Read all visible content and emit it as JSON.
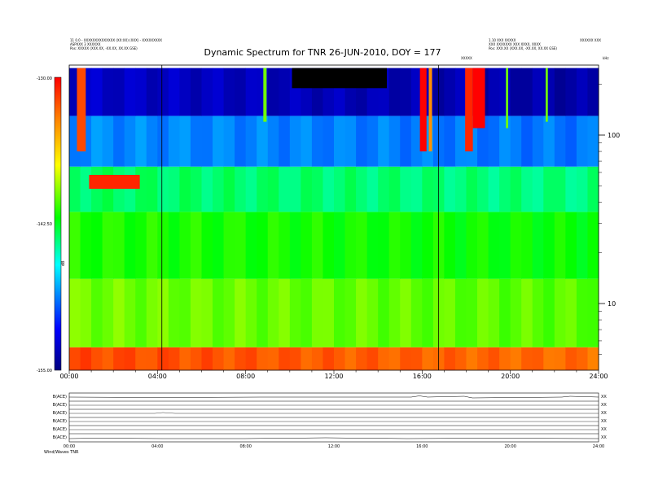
{
  "chart_data": {
    "type": "heatmap",
    "title": "Dynamic Spectrum for TNR 26-JUN-2010, DOY = 177",
    "x_tick_labels": [
      "00:00",
      "04:00",
      "08:00",
      "12:00",
      "16:00",
      "20:00",
      "24:00"
    ],
    "xlim_hours": [
      0,
      24
    ],
    "y_tick_labels": [
      "100",
      "10"
    ],
    "y_scale": "log",
    "y_unit": "kHz",
    "ylim_khz": [
      4,
      250
    ],
    "colorbar": {
      "min": -155.0,
      "mid": -142.5,
      "max": -130.0,
      "min_label": "-155.00",
      "mid_label": "-142.50",
      "max_label": "-130.00",
      "unit_label": "dB",
      "colors": [
        "#000080",
        "#0000ff",
        "#00ffff",
        "#00ff00",
        "#ffff00",
        "#ff8000",
        "#ff0000"
      ]
    },
    "vertical_marker_lines_hours": [
      4.2,
      16.75
    ],
    "panel_bands": [
      {
        "fmin": 4.0,
        "fmax": 5.5,
        "v0": -132,
        "v1": -133
      },
      {
        "fmin": 5.5,
        "fmax": 14,
        "v0": -140,
        "v1": -140.5
      },
      {
        "fmin": 14,
        "fmax": 35,
        "v0": -141.5,
        "v1": -142
      },
      {
        "fmin": 35,
        "fmax": 65,
        "v0": -143.5,
        "v1": -144
      },
      {
        "fmin": 65,
        "fmax": 130,
        "v0": -148.5,
        "v1": -149
      },
      {
        "fmin": 130,
        "fmax": 250,
        "v0": -153,
        "v1": -154
      }
    ],
    "bursts": [
      {
        "t0": 0.35,
        "t1": 0.75,
        "fmin": 80,
        "fmax": 250,
        "value": -132
      },
      {
        "t0": 0.9,
        "t1": 3.2,
        "fmin": 48,
        "fmax": 58,
        "value": -131
      },
      {
        "t0": 15.9,
        "t1": 16.2,
        "fmin": 80,
        "fmax": 250,
        "value": -130
      },
      {
        "t0": 16.3,
        "t1": 16.45,
        "fmin": 80,
        "fmax": 250,
        "value": -134
      },
      {
        "t0": 17.95,
        "t1": 18.3,
        "fmin": 80,
        "fmax": 250,
        "value": -131
      },
      {
        "t0": 18.3,
        "t1": 18.85,
        "fmin": 110,
        "fmax": 250,
        "value": -130
      },
      {
        "t0": 8.8,
        "t1": 8.95,
        "fmin": 120,
        "fmax": 250,
        "value": -140
      },
      {
        "t0": 19.8,
        "t1": 19.9,
        "fmin": 110,
        "fmax": 250,
        "value": -140
      },
      {
        "t0": 21.6,
        "t1": 21.7,
        "fmin": 120,
        "fmax": 250,
        "value": -140
      }
    ],
    "dark_region": {
      "t0": 10.1,
      "t1": 14.4,
      "fmin": 190,
      "fmax": 250,
      "value": -158
    }
  },
  "header": {
    "left_lines": [
      "11 0.0 - XXXXXXXXXXXXXX (XX:XX) (XXX) - XXXXXXXXX",
      "ASPXXX 3 XXXXXX",
      "Pos:    XXXXX (XXX.XX, -XX.XX, XX.XX GSE)"
    ],
    "right_lines": [
      "1.10 XXX XXXXX",
      "XXX XXXXXXX XXX XXXX, XXXX",
      "Pos:    XXX.XX (XXX.XX, -XX.XX, XX.XX GSE)"
    ],
    "right_extra": "XXXXXX XXX",
    "station": "XXXXX",
    "unit_corner": "kHz"
  },
  "bottom_panels": {
    "labels": [
      "B(ACE)",
      "B(ACE)",
      "B(ACE)",
      "B(ACE)",
      "B(ACE)",
      "B(ACE)"
    ],
    "right_labels": [
      "XX",
      "XX",
      "XX",
      "XX",
      "XX",
      "XX"
    ],
    "time_labels": [
      "00:00",
      "04:00",
      "08:00",
      "12:00",
      "16:00",
      "20:00",
      "24:00"
    ],
    "footer": "Wind/Waves  TNR"
  }
}
